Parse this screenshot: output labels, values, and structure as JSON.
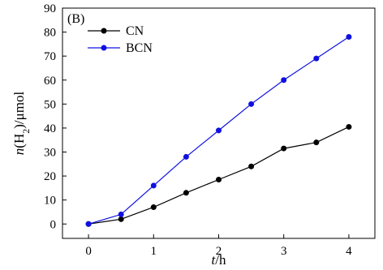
{
  "chart_data": {
    "type": "line",
    "panel_label": "(B)",
    "xlabel": {
      "italic": "t",
      "rest": "/h"
    },
    "ylabel": {
      "italic": "n",
      "pre": "(H",
      "sub": "2",
      "post": ")/μmol"
    },
    "xlim": [
      -0.4,
      4.4
    ],
    "ylim": [
      -6,
      90
    ],
    "xticks": [
      0,
      1,
      2,
      3,
      4
    ],
    "yticks": [
      0,
      10,
      20,
      30,
      40,
      50,
      60,
      70,
      80,
      90
    ],
    "legend_position": "top-left",
    "grid": false,
    "series": [
      {
        "name": "CN",
        "color": "#000000",
        "x": [
          0,
          0.5,
          1,
          1.5,
          2,
          2.5,
          3,
          3.5,
          4
        ],
        "y": [
          0,
          2,
          7,
          13,
          18.5,
          24,
          31.5,
          34,
          40.5
        ]
      },
      {
        "name": "BCN",
        "color": "#1010e0",
        "x": [
          0,
          0.5,
          1,
          1.5,
          2,
          2.5,
          3,
          3.5,
          4
        ],
        "y": [
          0,
          4,
          16,
          28,
          39,
          50,
          60,
          69,
          78
        ]
      }
    ]
  }
}
